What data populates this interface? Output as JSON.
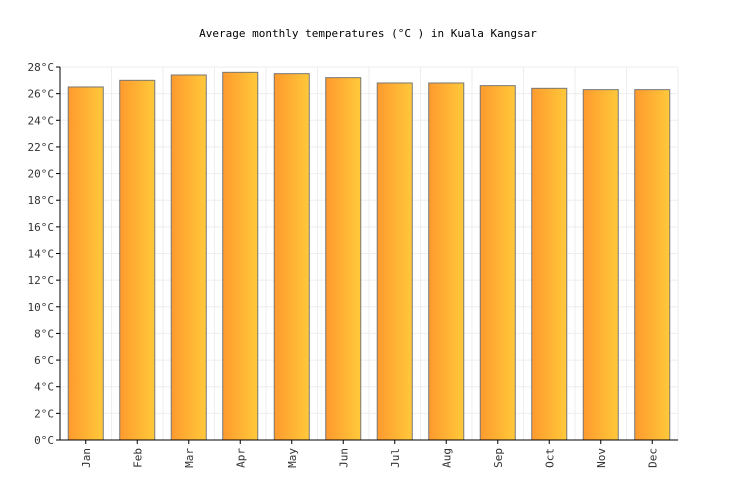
{
  "chart_data": {
    "type": "bar",
    "title": "Average monthly temperatures (°C ) in Kuala Kangsar",
    "xlabel": "",
    "ylabel": "",
    "categories": [
      "Jan",
      "Feb",
      "Mar",
      "Apr",
      "May",
      "Jun",
      "Jul",
      "Aug",
      "Sep",
      "Oct",
      "Nov",
      "Dec"
    ],
    "values": [
      26.5,
      27.0,
      27.4,
      27.6,
      27.5,
      27.2,
      26.8,
      26.8,
      26.6,
      26.4,
      26.3,
      26.3
    ],
    "ylim": [
      0,
      28
    ],
    "yticks": [
      "0°C",
      "2°C",
      "4°C",
      "6°C",
      "8°C",
      "10°C",
      "12°C",
      "14°C",
      "16°C",
      "18°C",
      "20°C",
      "22°C",
      "24°C",
      "26°C",
      "28°C"
    ],
    "grid": true,
    "colors": {
      "bar_start": "#ff9a2e",
      "bar_end": "#ffc93a",
      "bar_stroke": "#777777"
    }
  }
}
